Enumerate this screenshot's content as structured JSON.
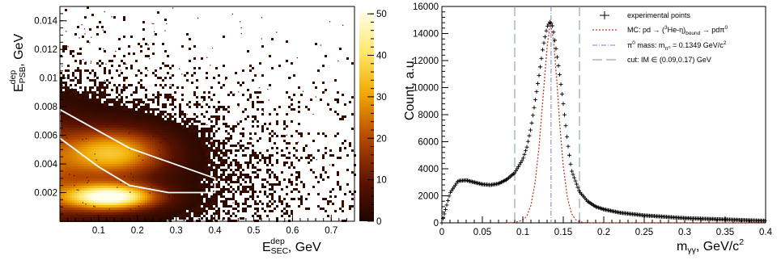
{
  "chart_data": [
    {
      "type": "heatmap",
      "xlabel": {
        "main": "E",
        "sup": "dep",
        "sub": "SEC",
        "unit": ", GeV"
      },
      "ylabel": {
        "main": "E",
        "sup": "dep",
        "sub": "PSB",
        "unit": ", GeV"
      },
      "xlim": [
        0.0,
        0.76
      ],
      "ylim": [
        0.0,
        0.015
      ],
      "x_ticks": [
        "0.1",
        "0.2",
        "0.3",
        "0.4",
        "0.5",
        "0.6",
        "0.7"
      ],
      "y_ticks": [
        "0.002",
        "0.004",
        "0.006",
        "0.008",
        "0.01",
        "0.012",
        "0.014"
      ],
      "colorbar": {
        "min": 0,
        "max": 51,
        "ticks": [
          "0",
          "10",
          "20",
          "30",
          "40",
          "50"
        ]
      },
      "density_clusters": [
        {
          "x": 0.13,
          "y": 0.0017,
          "sx": 0.08,
          "sy": 0.0006,
          "peak": 50
        },
        {
          "x": 0.14,
          "y": 0.0048,
          "sx": 0.09,
          "sy": 0.0011,
          "peak": 30
        }
      ],
      "selection_polygon": [
        {
          "x": 0.0,
          "y": 0.0078
        },
        {
          "x": 0.18,
          "y": 0.0051
        },
        {
          "x": 0.4,
          "y": 0.003
        },
        {
          "x": 0.4,
          "y": 0.002
        },
        {
          "x": 0.28,
          "y": 0.002
        },
        {
          "x": 0.18,
          "y": 0.0025
        },
        {
          "x": 0.1,
          "y": 0.0038
        },
        {
          "x": 0.0,
          "y": 0.0058
        }
      ]
    },
    {
      "type": "line",
      "xlabel": {
        "main": "m",
        "sub": "γγ",
        "unit": ", GeV/c",
        "sup": "2"
      },
      "ylabel": "Count, a.u.",
      "xlim": [
        0.0,
        0.4
      ],
      "ylim": [
        0,
        16000
      ],
      "x_ticks": [
        "0",
        "0.05",
        "0.1",
        "0.15",
        "0.2",
        "0.25",
        "0.3",
        "0.35",
        "0.4"
      ],
      "y_ticks": [
        "0",
        "2000",
        "4000",
        "6000",
        "8000",
        "10000",
        "12000",
        "14000",
        "16000"
      ],
      "series": [
        {
          "name": "experimental points",
          "style": "markers",
          "color": "#000000",
          "x": [
            0.0,
            0.01,
            0.02,
            0.03,
            0.04,
            0.05,
            0.06,
            0.07,
            0.08,
            0.09,
            0.1,
            0.105,
            0.11,
            0.115,
            0.12,
            0.125,
            0.13,
            0.134,
            0.137,
            0.14,
            0.145,
            0.15,
            0.155,
            0.16,
            0.17,
            0.18,
            0.19,
            0.2,
            0.22,
            0.25,
            0.3,
            0.35,
            0.4
          ],
          "y": [
            0,
            2200,
            3100,
            3150,
            3000,
            2850,
            2800,
            2900,
            3200,
            3700,
            4700,
            5600,
            7000,
            8900,
            10900,
            13000,
            14500,
            14900,
            14500,
            13300,
            11200,
            8800,
            6100,
            3900,
            2300,
            1600,
            1200,
            1000,
            750,
            550,
            350,
            250,
            150
          ]
        },
        {
          "name": "MC: pd → (3He-η)bound → pdπ0",
          "style": "dotted",
          "color": "#c0392b",
          "x": [
            0.08,
            0.09,
            0.1,
            0.105,
            0.11,
            0.115,
            0.12,
            0.125,
            0.13,
            0.134,
            0.138,
            0.142,
            0.146,
            0.15,
            0.155,
            0.16,
            0.165,
            0.17,
            0.18,
            0.4
          ],
          "y": [
            0,
            30,
            200,
            500,
            1300,
            2900,
            5600,
            9300,
            13000,
            14800,
            13500,
            10500,
            7000,
            4200,
            1900,
            700,
            250,
            80,
            0,
            0
          ]
        }
      ],
      "vlines": [
        {
          "name": "π0 mass: mπ0 = 0.1349 GeV/c2",
          "x": 0.1349,
          "style": "dashdot",
          "color": "#7080c8"
        },
        {
          "name": "cut: IM ∈ (0.09,0.17) GeV",
          "x": 0.09,
          "style": "longdash",
          "color": "#7a9b8e"
        },
        {
          "name": "cut: IM ∈ (0.09,0.17) GeV",
          "x": 0.17,
          "style": "longdash",
          "color": "#7a9b8e"
        }
      ],
      "legend": {
        "placement": "top-right",
        "entries": [
          {
            "key": "exp",
            "text": "experimental points"
          },
          {
            "key": "mc",
            "text": "MC: pd → (",
            "sup1": "3",
            "mid": "He-η)",
            "sub1": "bound",
            "tail": " → pdπ",
            "sup2": "0"
          },
          {
            "key": "pi0",
            "text": "π",
            "sup1": "0",
            "mid": " mass: m",
            "sub1": "π⁰",
            "tail": " = 0.1349 GeV/c",
            "sup2": "2"
          },
          {
            "key": "cut",
            "text": "cut: IM ∈ (0.09,0.17) GeV"
          }
        ]
      }
    }
  ],
  "colors": {
    "axis": "#000000",
    "polygon": "#ffffff",
    "mc_line": "#c0392b",
    "pi0_line": "#7080c8",
    "cut_line": "#7a9b8e"
  }
}
